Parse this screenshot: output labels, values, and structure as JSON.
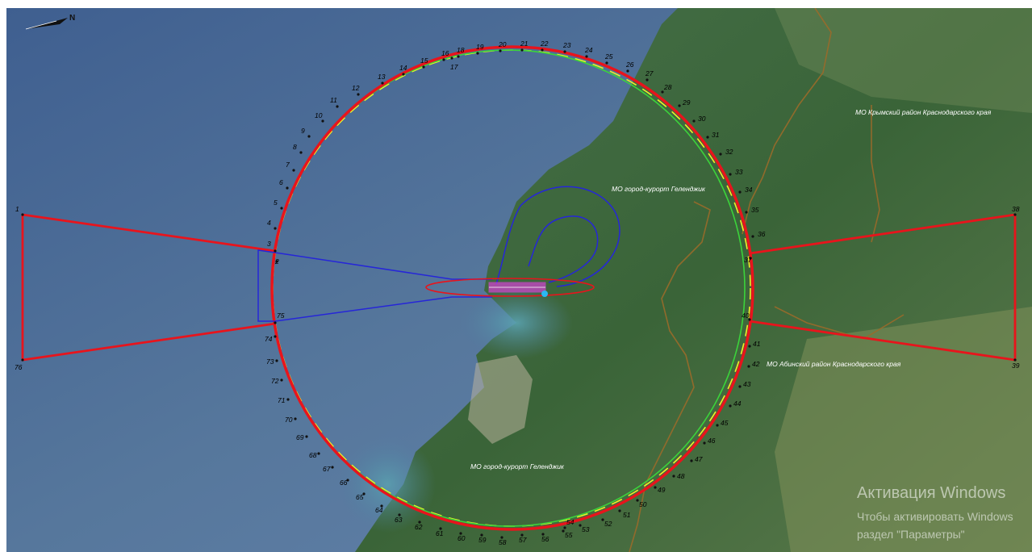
{
  "map": {
    "labels": {
      "crimea_district": "МО Крымский район Краснодарского края",
      "gelendzhik_north": "МО город-курорт Геленджик",
      "abinsk_district": "МО Абинский район Краснодарского края",
      "gelendzhik_south": "МО город-курорт Геленджик"
    },
    "north_arrow_letter": "N",
    "point_labels": [
      "1",
      "2",
      "3",
      "4",
      "5",
      "6",
      "7",
      "8",
      "9",
      "10",
      "11",
      "12",
      "13",
      "14",
      "15",
      "16",
      "17",
      "18",
      "19",
      "20",
      "21",
      "22",
      "23",
      "24",
      "25",
      "26",
      "27",
      "28",
      "29",
      "30",
      "31",
      "32",
      "33",
      "34",
      "35",
      "36",
      "37",
      "38",
      "39",
      "40",
      "41",
      "42",
      "43",
      "44",
      "45",
      "46",
      "47",
      "48",
      "49",
      "50",
      "51",
      "52",
      "53",
      "54",
      "55",
      "56",
      "57",
      "58",
      "59",
      "60",
      "61",
      "62",
      "63",
      "64",
      "65",
      "66",
      "67",
      "68",
      "69",
      "70",
      "71",
      "72",
      "73",
      "74",
      "75",
      "76"
    ],
    "colors": {
      "boundary": "#e8141c",
      "inner_circle": "#3bd33b",
      "dashed_circle": "#f0f028",
      "approach": "#2626d8",
      "runway_zone": "#e8141c",
      "runway": "#e040e0",
      "admin_border": "#9a6a2a",
      "sea": "#4d6f99",
      "land": "#3d6a3a"
    }
  },
  "watermark": {
    "title": "Активация Windows",
    "line1": "Чтобы активировать Windows",
    "line2": "раздел \"Параметры\""
  }
}
